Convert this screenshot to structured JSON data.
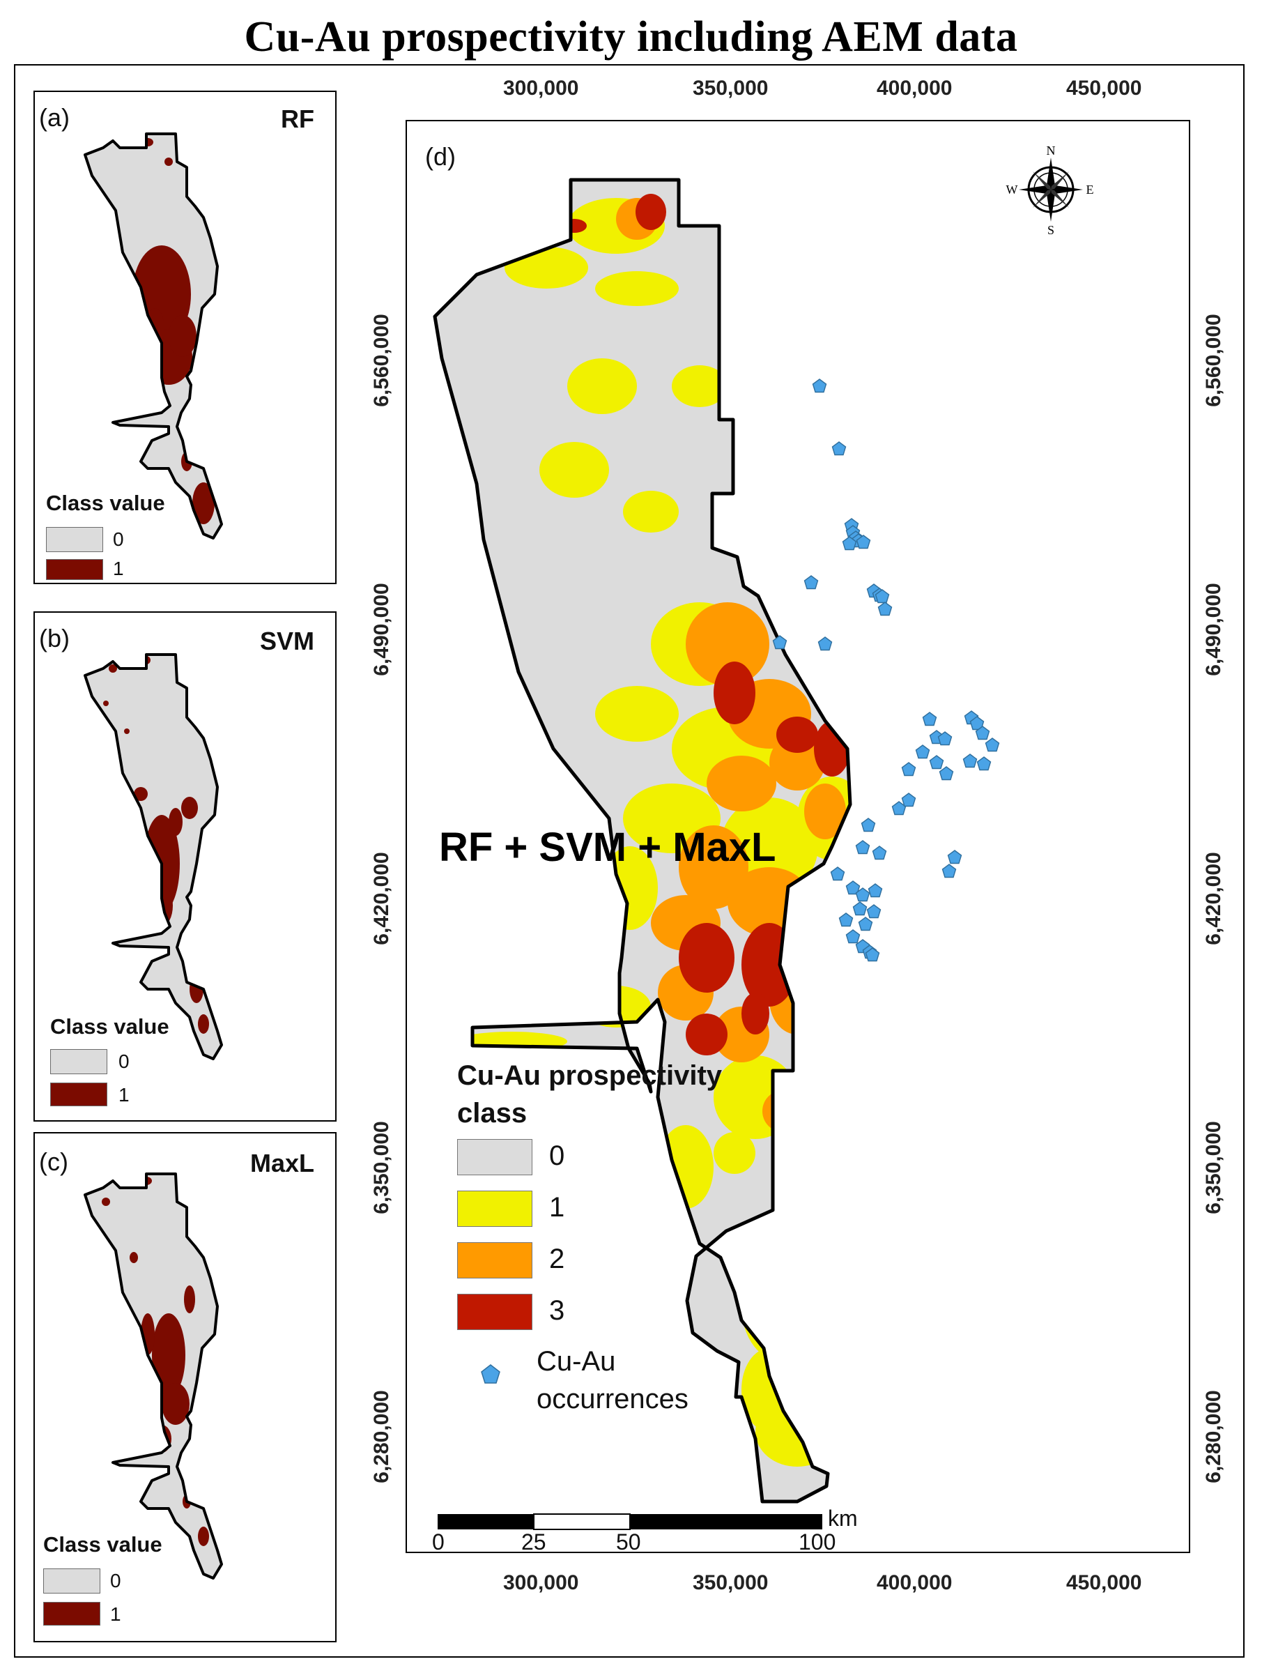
{
  "title": "Cu-Au prospectivity including AEM data",
  "colors": {
    "class0": "#dcdcdc",
    "class1": "#f1f100",
    "class2": "#ff9a00",
    "class3": "#c01800",
    "binary1": "#7b0b00",
    "occurrence": "#4aa3e6"
  },
  "panels": {
    "a": {
      "label": "(a)",
      "method": "RF",
      "legend_title": "Class value",
      "classes": [
        "0",
        "1"
      ]
    },
    "b": {
      "label": "(b)",
      "method": "SVM",
      "legend_title": "Class value",
      "classes": [
        "0",
        "1"
      ]
    },
    "c": {
      "label": "(c)",
      "method": "MaxL",
      "legend_title": "Class value",
      "classes": [
        "0",
        "1"
      ]
    }
  },
  "main": {
    "label": "(d)",
    "combo_label": "RF + SVM + MaxL",
    "x_ticks": [
      "300,000",
      "350,000",
      "400,000",
      "450,000"
    ],
    "y_ticks": [
      "6,560,000",
      "6,490,000",
      "6,420,000",
      "6,350,000",
      "6,280,000"
    ],
    "legend": {
      "title_line1": "Cu-Au prospectivity",
      "title_line2": "class",
      "classes": [
        "0",
        "1",
        "2",
        "3"
      ],
      "occurrence_line1": "Cu-Au",
      "occurrence_line2": "occurrences"
    },
    "scalebar": {
      "labels": [
        "0",
        "25",
        "50",
        "100"
      ],
      "unit": "km"
    },
    "compass": {
      "n": "N",
      "e": "E",
      "s": "S",
      "w": "W"
    }
  }
}
